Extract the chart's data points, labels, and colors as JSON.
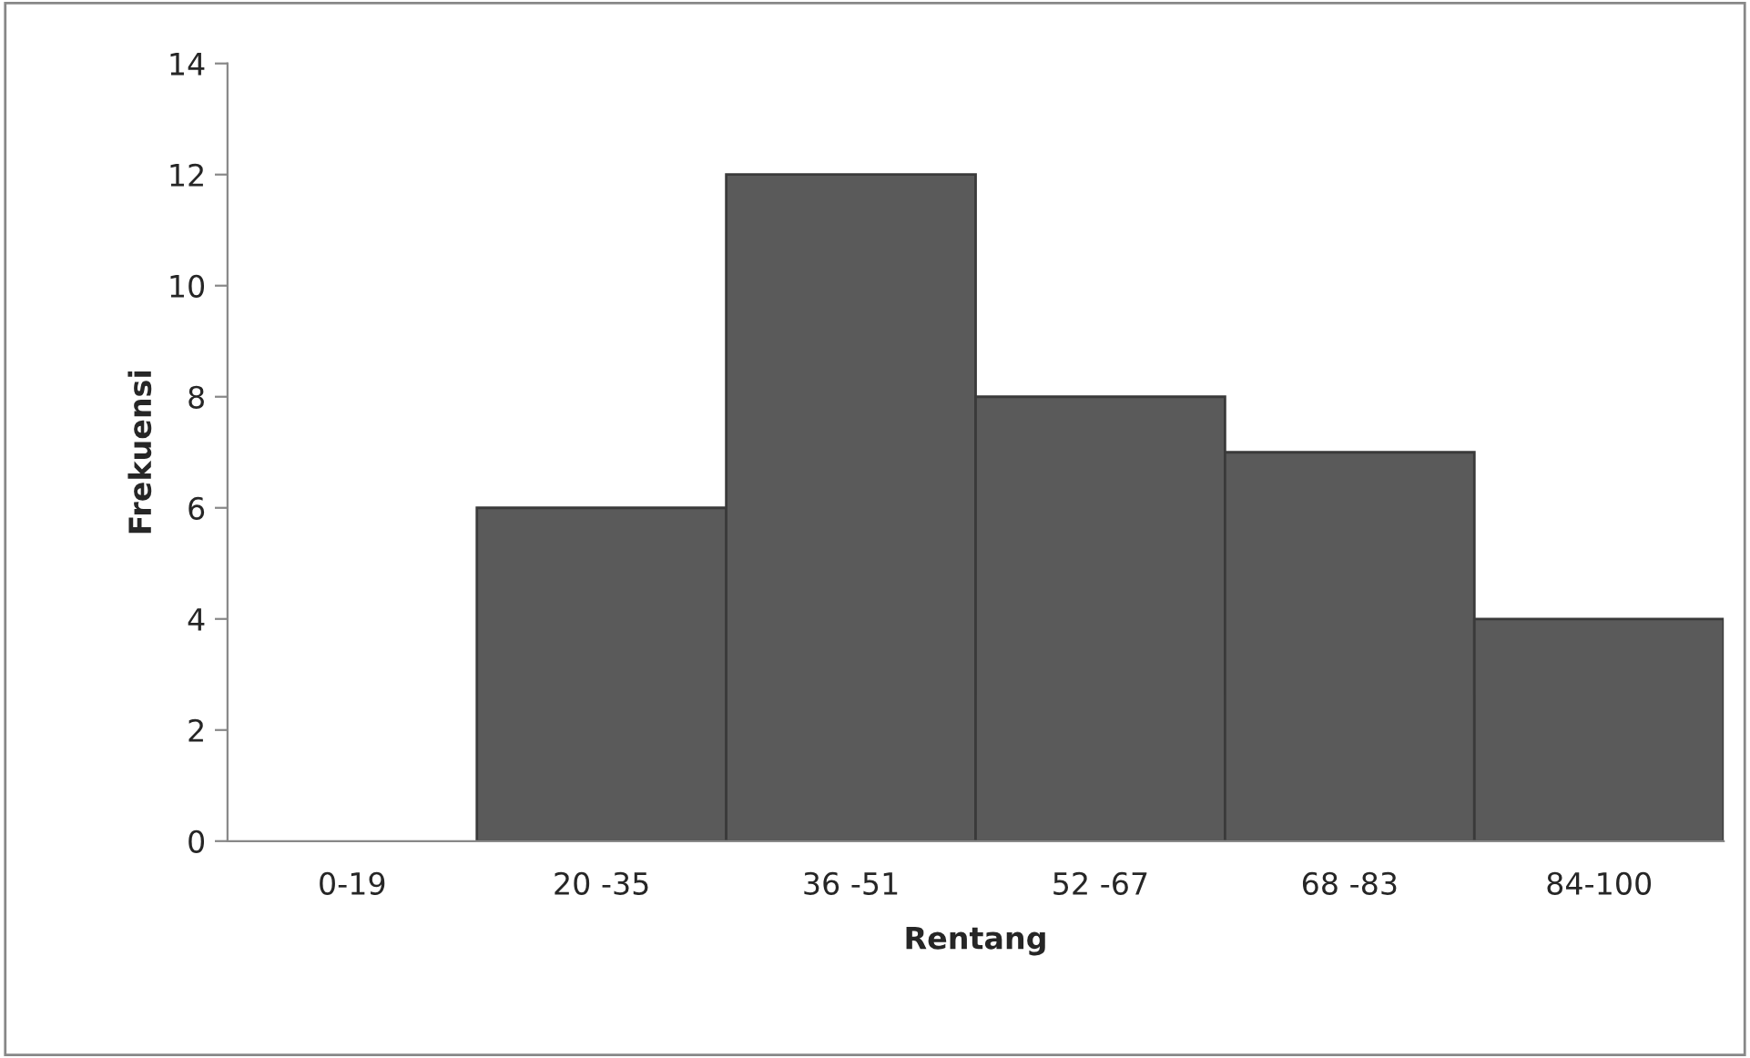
{
  "chart_data": {
    "type": "bar",
    "xlabel": "Rentang",
    "ylabel": "Frekuensi",
    "categories": [
      "0-19",
      "20 -35",
      "36 -51",
      "52 -67",
      "68 -83",
      "84-100"
    ],
    "values": [
      0,
      6,
      12,
      8,
      7,
      4
    ],
    "color": "#5a5a5a",
    "ylim": [
      0,
      14
    ],
    "yticks": [
      0,
      2,
      4,
      6,
      8,
      10,
      12,
      14
    ],
    "grid": false,
    "legend": false
  }
}
